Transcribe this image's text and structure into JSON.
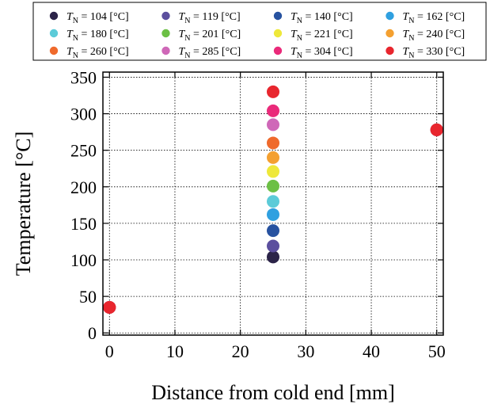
{
  "chart_data": {
    "type": "scatter",
    "xlabel": "Distance from cold end [mm]",
    "ylabel": "Temperature [°C]",
    "xlim": [
      -1,
      51
    ],
    "ylim": [
      -3,
      357
    ],
    "xticks": [
      0,
      10,
      20,
      30,
      40,
      50
    ],
    "yticks": [
      0,
      50,
      100,
      150,
      200,
      250,
      300,
      350
    ],
    "grid": true,
    "legend_position": "top",
    "x": [
      0,
      25,
      50
    ],
    "series": [
      {
        "name": "T_N = 104 [°C]",
        "label_main": "T",
        "label_sub": "N",
        "label_rest": " = 104 [°C]",
        "color": "#2b2348",
        "values": [
          35,
          104,
          278
        ]
      },
      {
        "name": "T_N = 119 [°C]",
        "label_main": "T",
        "label_sub": "N",
        "label_rest": " = 119 [°C]",
        "color": "#5c4f9e",
        "values": [
          35,
          119,
          278
        ]
      },
      {
        "name": "T_N = 140 [°C]",
        "label_main": "T",
        "label_sub": "N",
        "label_rest": " = 140 [°C]",
        "color": "#2752a0",
        "values": [
          35,
          140,
          278
        ]
      },
      {
        "name": "T_N = 162 [°C]",
        "label_main": "T",
        "label_sub": "N",
        "label_rest": " = 162 [°C]",
        "color": "#2fa0e0",
        "values": [
          35,
          162,
          278
        ]
      },
      {
        "name": "T_N = 180 [°C]",
        "label_main": "T",
        "label_sub": "N",
        "label_rest": " = 180 [°C]",
        "color": "#5ccbd8",
        "values": [
          35,
          180,
          278
        ]
      },
      {
        "name": "T_N = 201 [°C]",
        "label_main": "T",
        "label_sub": "N",
        "label_rest": " = 201 [°C]",
        "color": "#6cc045",
        "values": [
          35,
          201,
          278
        ]
      },
      {
        "name": "T_N = 221 [°C]",
        "label_main": "T",
        "label_sub": "N",
        "label_rest": " = 221 [°C]",
        "color": "#eee83a",
        "values": [
          35,
          221,
          278
        ]
      },
      {
        "name": "T_N = 240 [°C]",
        "label_main": "T",
        "label_sub": "N",
        "label_rest": " = 240 [°C]",
        "color": "#f4a030",
        "values": [
          35,
          240,
          278
        ]
      },
      {
        "name": "T_N = 260 [°C]",
        "label_main": "T",
        "label_sub": "N",
        "label_rest": " = 260 [°C]",
        "color": "#ef6a2c",
        "values": [
          35,
          260,
          278
        ]
      },
      {
        "name": "T_N = 285 [°C]",
        "label_main": "T",
        "label_sub": "N",
        "label_rest": " = 285 [°C]",
        "color": "#cf68b8",
        "values": [
          35,
          285,
          278
        ]
      },
      {
        "name": "T_N = 304 [°C]",
        "label_main": "T",
        "label_sub": "N",
        "label_rest": " = 304 [°C]",
        "color": "#ea2a7a",
        "values": [
          35,
          304,
          278
        ]
      },
      {
        "name": "T_N = 330 [°C]",
        "label_main": "T",
        "label_sub": "N",
        "label_rest": " = 330 [°C]",
        "color": "#e8262e",
        "values": [
          35,
          330,
          278
        ]
      }
    ]
  }
}
